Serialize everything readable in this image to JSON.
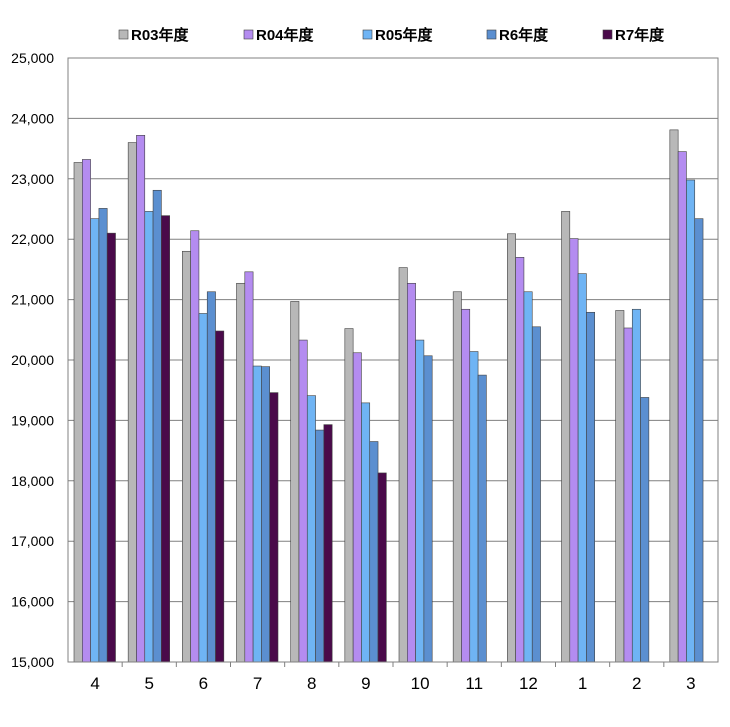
{
  "chart_data": {
    "type": "bar",
    "title": "",
    "xlabel": "",
    "ylabel": "",
    "ylim": [
      15000,
      25000
    ],
    "y_ticks": [
      "15,000",
      "16,000",
      "17,000",
      "18,000",
      "19,000",
      "20,000",
      "21,000",
      "22,000",
      "23,000",
      "24,000",
      "25,000"
    ],
    "y_tick_values": [
      15000,
      16000,
      17000,
      18000,
      19000,
      20000,
      21000,
      22000,
      23000,
      24000,
      25000
    ],
    "grid": true,
    "legend_position": "top",
    "categories": [
      "4",
      "5",
      "6",
      "7",
      "8",
      "9",
      "10",
      "11",
      "12",
      "1",
      "2",
      "3"
    ],
    "series": [
      {
        "name": "R03年度",
        "color": "#b8b8b8",
        "values": [
          23270,
          23600,
          21800,
          21270,
          20970,
          20520,
          21530,
          21130,
          22090,
          22460,
          20820,
          23810
        ]
      },
      {
        "name": "R04年度",
        "color": "#b48cf0",
        "values": [
          23320,
          23720,
          22140,
          21460,
          20330,
          20120,
          21270,
          20840,
          21700,
          22010,
          20530,
          23450
        ]
      },
      {
        "name": "R05年度",
        "color": "#6fb4f4",
        "values": [
          22340,
          22460,
          20770,
          19900,
          19410,
          19290,
          20330,
          20140,
          21130,
          21430,
          20840,
          22980
        ]
      },
      {
        "name": "R6年度",
        "color": "#5b8fd0",
        "values": [
          22510,
          22810,
          21130,
          19890,
          18840,
          18650,
          20070,
          19750,
          20550,
          20790,
          19380,
          22340
        ]
      },
      {
        "name": "R7年度",
        "color": "#4a0a4a",
        "values": [
          22100,
          22390,
          20480,
          19460,
          18930,
          18130,
          null,
          null,
          null,
          null,
          null,
          null
        ]
      }
    ]
  }
}
